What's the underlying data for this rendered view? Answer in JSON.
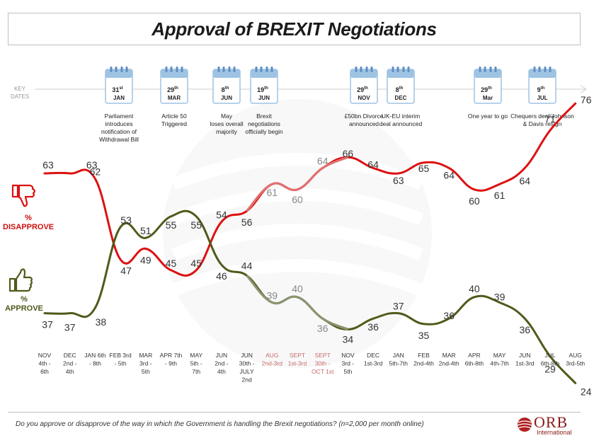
{
  "title": "Approval of BREXIT Negotiations",
  "key_dates_label": "KEY DATES",
  "footnote": "Do you approve or disapprove of the way in which the Government is handling the Brexit negotiations? (n=2,000 per month online)",
  "logo": {
    "name": "ORB",
    "sub": "International"
  },
  "legend": {
    "disapprove": "% DISAPPROVE",
    "approve": "% APPROVE"
  },
  "colors": {
    "disapprove": "#dd1111",
    "approve": "#4e5b1a",
    "highlight_disapprove": "#e07070",
    "highlight_approve": "#8a9470",
    "axis_gray": "#aaaaaa"
  },
  "key_dates": [
    {
      "day": "31",
      "sup": "st",
      "month": "JAN",
      "lines": [
        "Parliament",
        "introduces",
        "notification of",
        "Withdrawal Bill"
      ]
    },
    {
      "day": "29",
      "sup": "th",
      "month": "MAR",
      "lines": [
        "Article 50",
        "Triggered"
      ]
    },
    {
      "day": "8",
      "sup": "th",
      "month": "JUN",
      "lines": [
        "May",
        "loses overall",
        "majority"
      ]
    },
    {
      "day": "19",
      "sup": "th",
      "month": "JUN",
      "lines": [
        "Brexit",
        "negotiations",
        "officially begin"
      ]
    },
    {
      "day": "29",
      "sup": "th",
      "month": "NOV",
      "lines": [
        "£50bn Divorce",
        "announced"
      ]
    },
    {
      "day": "8",
      "sup": "th",
      "month": "DEC",
      "lines": [
        "UK-EU interim",
        "deal announced"
      ]
    },
    {
      "day": "29",
      "sup": "th",
      "month": "Mar",
      "lines": [
        "One year to go"
      ]
    },
    {
      "day": "9",
      "sup": "th",
      "month": "JUL",
      "lines": [
        "Chequers deal/Johnson",
        "& Davis resign"
      ]
    }
  ],
  "chart_data": {
    "type": "line",
    "categories": [
      [
        "NOV",
        "4th -",
        "6th"
      ],
      [
        "DEC",
        "2nd -",
        "4th"
      ],
      [
        "JAN 6th",
        "- 8th"
      ],
      [
        "FEB 3rd",
        "- 5th"
      ],
      [
        "MAR",
        "3rd -",
        "5th"
      ],
      [
        "APR 7th",
        "- 9th"
      ],
      [
        "MAY",
        "5th -",
        "7th"
      ],
      [
        "JUN",
        "2nd -",
        "4th"
      ],
      [
        "JUN",
        "30th -",
        "JULY",
        "2nd"
      ],
      [
        "AUG",
        "2nd-3rd"
      ],
      [
        "SEPT",
        "1st-3rd"
      ],
      [
        "SEPT",
        "30th -",
        "OCT 1st"
      ],
      [
        "NOV",
        "3rd -",
        "5th"
      ],
      [
        "DEC",
        "1st-3rd"
      ],
      [
        "JAN",
        "5th-7th"
      ],
      [
        "FEB",
        "2nd-4th"
      ],
      [
        "MAR",
        "2nd-4th"
      ],
      [
        "APR",
        "6th-8th"
      ],
      [
        "MAY",
        "4th-7th"
      ],
      [
        "JUN",
        "1st-3rd"
      ],
      [
        "JUL",
        "6th-8th"
      ],
      [
        "AUG",
        "3rd-5th"
      ]
    ],
    "highlighted_categories": [
      9,
      10,
      11
    ],
    "series": [
      {
        "name": "% DISAPPROVE",
        "values": [
          63,
          63,
          62,
          47,
          49,
          45,
          45,
          54,
          56,
          61,
          60,
          64,
          66,
          64,
          63,
          65,
          64,
          60,
          61,
          64,
          71,
          76
        ]
      },
      {
        "name": "% APPROVE",
        "values": [
          37,
          37,
          38,
          53,
          51,
          55,
          55,
          46,
          44,
          39,
          40,
          36,
          34,
          36,
          37,
          35,
          36,
          40,
          39,
          36,
          29,
          24
        ]
      }
    ]
  }
}
